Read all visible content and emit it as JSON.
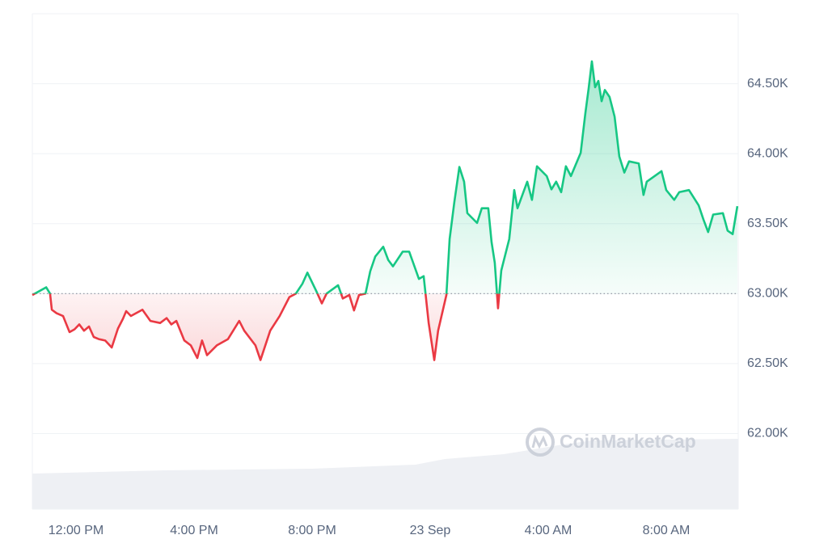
{
  "chart_data": {
    "type": "line",
    "x": [
      -1.48,
      -1.01,
      -0.88,
      -0.82,
      -0.66,
      -0.44,
      -0.22,
      -0.05,
      0.11,
      0.27,
      0.44,
      0.6,
      0.77,
      0.99,
      1.21,
      1.42,
      1.59,
      1.7,
      1.86,
      2.25,
      2.52,
      2.85,
      3.07,
      3.23,
      3.4,
      3.67,
      3.89,
      4.11,
      4.27,
      4.44,
      4.77,
      5.15,
      5.53,
      5.7,
      6.08,
      6.25,
      6.58,
      6.9,
      7.23,
      7.45,
      7.67,
      7.84,
      8.16,
      8.33,
      8.49,
      8.88,
      9.04,
      9.26,
      9.42,
      9.59,
      9.81,
      9.97,
      10.14,
      10.41,
      10.58,
      10.74,
      11.07,
      11.29,
      11.62,
      11.78,
      11.95,
      12.14,
      12.27,
      12.55,
      12.66,
      12.82,
      12.99,
      13.15,
      13.26,
      13.59,
      13.75,
      13.97,
      14.08,
      14.19,
      14.3,
      14.41,
      14.68,
      14.85,
      14.96,
      15.29,
      15.45,
      15.62,
      15.95,
      16.11,
      16.27,
      16.44,
      16.6,
      16.77,
      17.1,
      17.26,
      17.37,
      17.48,
      17.59,
      17.7,
      17.81,
      17.92,
      18.08,
      18.25,
      18.41,
      18.58,
      18.74,
      19.07,
      19.23,
      19.34,
      19.84,
      20.0,
      20.27,
      20.44,
      20.77,
      21.1,
      21.26,
      21.42,
      21.59,
      21.92,
      22.08,
      22.25,
      22.41
    ],
    "values": [
      62990,
      63045,
      63000,
      62885,
      62860,
      62840,
      62725,
      62745,
      62780,
      62735,
      62765,
      62690,
      62675,
      62665,
      62615,
      62750,
      62820,
      62875,
      62840,
      62885,
      62805,
      62790,
      62825,
      62780,
      62805,
      62665,
      62630,
      62540,
      62665,
      62560,
      62630,
      62675,
      62805,
      62735,
      62630,
      62525,
      62735,
      62840,
      62975,
      63000,
      63070,
      63150,
      63010,
      62930,
      63000,
      63060,
      62965,
      62990,
      62880,
      62990,
      63000,
      63160,
      63265,
      63335,
      63240,
      63195,
      63300,
      63300,
      63105,
      63125,
      62790,
      62525,
      62735,
      62990,
      63390,
      63655,
      63905,
      63800,
      63575,
      63505,
      63610,
      63610,
      63370,
      63220,
      62895,
      63165,
      63390,
      63740,
      63610,
      63800,
      63670,
      63910,
      63840,
      63745,
      63800,
      63725,
      63910,
      63840,
      64005,
      64290,
      64465,
      64660,
      64475,
      64520,
      64375,
      64455,
      64405,
      64265,
      63980,
      63865,
      63945,
      63930,
      63705,
      63800,
      63875,
      63740,
      63670,
      63725,
      63740,
      63630,
      63530,
      63440,
      63565,
      63575,
      63450,
      63425,
      63625
    ],
    "baseline": 63000,
    "up_color": "#16c784",
    "down_color": "#ea3943",
    "xlim": [
      -1.48,
      22.44
    ],
    "ylim": [
      61460,
      65000
    ],
    "xticks": [
      {
        "value": 0,
        "label": "12:00 PM"
      },
      {
        "value": 4,
        "label": "4:00 PM"
      },
      {
        "value": 8,
        "label": "8:00 PM"
      },
      {
        "value": 12,
        "label": "23 Sep"
      },
      {
        "value": 16,
        "label": "4:00 AM"
      },
      {
        "value": 20,
        "label": "8:00 AM"
      }
    ],
    "yticks": [
      {
        "value": 62000,
        "label": "62.00K"
      },
      {
        "value": 62500,
        "label": "62.50K"
      },
      {
        "value": 63000,
        "label": "63.00K"
      },
      {
        "value": 63500,
        "label": "63.50K"
      },
      {
        "value": 64000,
        "label": "64.00K"
      },
      {
        "value": 64500,
        "label": "64.50K"
      }
    ],
    "grid": true,
    "volume": {
      "x": [
        -1.48,
        3,
        8,
        11.5,
        12.5,
        14.5,
        16.5,
        17.5,
        22.44
      ],
      "values": [
        44,
        48,
        50,
        55,
        62,
        68,
        80,
        85,
        87
      ],
      "ylim": [
        0,
        100
      ],
      "color": "#eef0f4"
    },
    "watermark": "CoinMarketCap"
  }
}
